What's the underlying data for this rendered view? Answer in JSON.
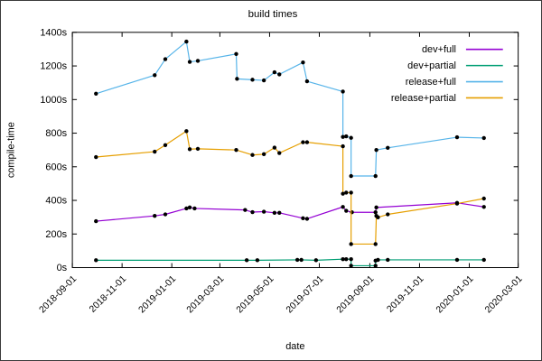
{
  "window": {
    "background": "#ffffff",
    "frame_color": "#3a3a3a"
  },
  "chart_data": {
    "type": "line",
    "title": "build times",
    "xlabel": "date",
    "ylabel": "compile-time",
    "x_range": [
      "2018-09-01",
      "2020-03-01"
    ],
    "ylim": [
      0,
      1400
    ],
    "grid": false,
    "legend_position": "top-right-inside",
    "marker": {
      "shape": "filled-circle",
      "color": "#000000"
    },
    "axis_color": "#000000",
    "x_ticks": [
      "2018-09-01",
      "2018-11-01",
      "2019-01-01",
      "2019-03-01",
      "2019-05-01",
      "2019-07-01",
      "2019-09-01",
      "2019-11-01",
      "2020-01-01",
      "2020-03-01"
    ],
    "y_ticks": [
      {
        "value": 0,
        "label": "0s"
      },
      {
        "value": 200,
        "label": "200s"
      },
      {
        "value": 400,
        "label": "400s"
      },
      {
        "value": 600,
        "label": "600s"
      },
      {
        "value": 800,
        "label": "800s"
      },
      {
        "value": 1000,
        "label": "1000s"
      },
      {
        "value": 1200,
        "label": "1200s"
      },
      {
        "value": 1400,
        "label": "1400s"
      }
    ],
    "series": [
      {
        "name": "dev+full",
        "color": "#9400d3",
        "points": [
          [
            "2018-09-30",
            276
          ],
          [
            "2018-12-11",
            308
          ],
          [
            "2018-12-24",
            317
          ],
          [
            "2019-01-19",
            352
          ],
          [
            "2019-01-23",
            358
          ],
          [
            "2019-01-29",
            352
          ],
          [
            "2019-04-01",
            343
          ],
          [
            "2019-04-10",
            330
          ],
          [
            "2019-04-24",
            333
          ],
          [
            "2019-05-07",
            326
          ],
          [
            "2019-05-13",
            326
          ],
          [
            "2019-06-11",
            294
          ],
          [
            "2019-06-16",
            290
          ],
          [
            "2019-07-30",
            361
          ],
          [
            "2019-08-03",
            338
          ],
          [
            "2019-08-10",
            329
          ],
          [
            "2019-09-08",
            329
          ],
          [
            "2019-09-09",
            358
          ],
          [
            "2019-12-17",
            385
          ],
          [
            "2020-01-19",
            361
          ]
        ]
      },
      {
        "name": "dev+partial",
        "color": "#009e73",
        "points": [
          [
            "2018-09-30",
            44
          ],
          [
            "2019-04-03",
            44
          ],
          [
            "2019-04-16",
            44
          ],
          [
            "2019-06-04",
            46
          ],
          [
            "2019-06-09",
            46
          ],
          [
            "2019-06-27",
            44
          ],
          [
            "2019-07-30",
            50
          ],
          [
            "2019-08-03",
            50
          ],
          [
            "2019-08-09",
            50
          ],
          [
            "2019-08-09",
            11
          ],
          [
            "2019-09-08",
            11
          ],
          [
            "2019-09-08",
            41
          ],
          [
            "2019-09-11",
            46
          ],
          [
            "2019-09-23",
            46
          ],
          [
            "2019-12-17",
            46
          ],
          [
            "2020-01-19",
            46
          ]
        ]
      },
      {
        "name": "release+full",
        "color": "#56b4e9",
        "points": [
          [
            "2018-09-30",
            1035
          ],
          [
            "2018-12-11",
            1145
          ],
          [
            "2018-12-24",
            1240
          ],
          [
            "2019-01-19",
            1345
          ],
          [
            "2019-01-23",
            1224
          ],
          [
            "2019-02-02",
            1230
          ],
          [
            "2019-03-21",
            1271
          ],
          [
            "2019-03-22",
            1123
          ],
          [
            "2019-04-10",
            1118
          ],
          [
            "2019-04-24",
            1114
          ],
          [
            "2019-05-07",
            1162
          ],
          [
            "2019-05-13",
            1150
          ],
          [
            "2019-06-11",
            1221
          ],
          [
            "2019-06-16",
            1109
          ],
          [
            "2019-07-30",
            1048
          ],
          [
            "2019-07-30",
            778
          ],
          [
            "2019-08-03",
            781
          ],
          [
            "2019-08-09",
            772
          ],
          [
            "2019-08-09",
            545
          ],
          [
            "2019-09-08",
            545
          ],
          [
            "2019-09-09",
            700
          ],
          [
            "2019-09-23",
            713
          ],
          [
            "2019-12-17",
            776
          ],
          [
            "2020-01-19",
            771
          ]
        ]
      },
      {
        "name": "release+partial",
        "color": "#e69f00",
        "points": [
          [
            "2018-09-30",
            658
          ],
          [
            "2018-12-11",
            690
          ],
          [
            "2018-12-24",
            729
          ],
          [
            "2019-01-19",
            812
          ],
          [
            "2019-01-23",
            705
          ],
          [
            "2019-02-02",
            707
          ],
          [
            "2019-03-21",
            700
          ],
          [
            "2019-04-10",
            670
          ],
          [
            "2019-04-24",
            675
          ],
          [
            "2019-05-07",
            714
          ],
          [
            "2019-05-13",
            682
          ],
          [
            "2019-06-11",
            746
          ],
          [
            "2019-06-16",
            746
          ],
          [
            "2019-07-30",
            722
          ],
          [
            "2019-07-30",
            440
          ],
          [
            "2019-08-03",
            446
          ],
          [
            "2019-08-09",
            446
          ],
          [
            "2019-08-09",
            140
          ],
          [
            "2019-09-08",
            140
          ],
          [
            "2019-09-09",
            308
          ],
          [
            "2019-09-11",
            299
          ],
          [
            "2019-09-23",
            317
          ],
          [
            "2019-12-17",
            381
          ],
          [
            "2020-01-19",
            411
          ]
        ]
      }
    ]
  }
}
